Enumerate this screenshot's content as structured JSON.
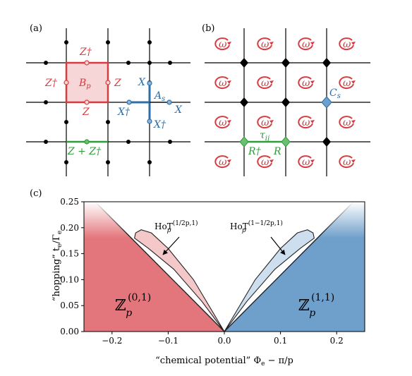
{
  "panel_a": {
    "label": "(a)",
    "plaquette_op": "B",
    "plaquette_sub": "p",
    "star_op": "A",
    "star_sub": "s",
    "z_dag": "Z†",
    "z": "Z",
    "x": "X",
    "x_dag": "X†",
    "z_plus_zdag": "Z + Z†",
    "colors": {
      "plaquette": "#d93a3f",
      "star": "#2c6fa8",
      "edge": "#2f9b3c"
    }
  },
  "panel_b": {
    "label": "(b)",
    "omega": "ω",
    "cs_op": "C",
    "cs_sub": "s",
    "tau": "τ",
    "tau_sub": "ij",
    "r_dag": "R†",
    "r": "R",
    "colors": {
      "omega": "#d93a3f",
      "cs": "#2c6fa8",
      "edge": "#2f9b3c"
    }
  },
  "panel_c": {
    "label": "(c)",
    "chart_data": {
      "type": "area",
      "xlabel": "“chemical potential” Φ",
      "xlabel_sub": "e",
      "xlabel_tail": " − π/p",
      "ylabel": "“hopping” t",
      "ylabel_sub": "e",
      "ylabel_tail": "/Γ",
      "ylabel_tail_sub": "e",
      "xlim": [
        -0.25,
        0.25
      ],
      "ylim": [
        0.0,
        0.25
      ],
      "x_ticks": [
        -0.2,
        -0.1,
        0.0,
        0.1,
        0.2
      ],
      "x_tick_labels": [
        "−0.2",
        "−0.1",
        "0.0",
        "0.1",
        "0.2"
      ],
      "y_ticks": [
        0.0,
        0.05,
        0.1,
        0.15,
        0.2,
        0.25
      ],
      "y_tick_labels": [
        "0.00",
        "0.05",
        "0.10",
        "0.15",
        "0.20",
        "0.25"
      ],
      "regions": [
        {
          "name": "ℤ_p^(0,1)",
          "label_main": "ℤ",
          "label_sub": "p",
          "label_sup": "(0,1)",
          "color": "#e3767c"
        },
        {
          "name": "ℤ_p^(1,1)",
          "label_main": "ℤ",
          "label_sub": "p",
          "label_sup": "(1,1)",
          "color": "#6f9fcb"
        }
      ],
      "boundary_lines": [
        {
          "from": [
            0.0,
            0.0
          ],
          "to": [
            -0.23,
            0.25
          ]
        },
        {
          "from": [
            0.0,
            0.0
          ],
          "to": [
            0.23,
            0.25
          ]
        }
      ],
      "lobes": [
        {
          "label": "HoT_p^(1/2p,1)",
          "label_main": "HoT",
          "label_sub": "p",
          "label_sup": "(1/2p,1)",
          "color": "#f3c1c3",
          "points": [
            [
              0.0,
              0.0
            ],
            [
              -0.055,
              0.1
            ],
            [
              -0.1,
              0.16
            ],
            [
              -0.13,
              0.19
            ],
            [
              -0.148,
              0.196
            ],
            [
              -0.158,
              0.19
            ],
            [
              -0.16,
              0.18
            ],
            [
              -0.135,
              0.16
            ],
            [
              -0.09,
              0.12
            ],
            [
              -0.04,
              0.058
            ],
            [
              0.0,
              0.0
            ]
          ]
        },
        {
          "label": "HoT_p^(1−1/2p,1)",
          "label_main": "HoT",
          "label_sub": "p",
          "label_sup": "(1−1/2p,1)",
          "color": "#c8dbec",
          "points": [
            [
              0.0,
              0.0
            ],
            [
              0.055,
              0.1
            ],
            [
              0.1,
              0.16
            ],
            [
              0.13,
              0.19
            ],
            [
              0.148,
              0.196
            ],
            [
              0.158,
              0.19
            ],
            [
              0.16,
              0.18
            ],
            [
              0.135,
              0.16
            ],
            [
              0.09,
              0.12
            ],
            [
              0.04,
              0.058
            ],
            [
              0.0,
              0.0
            ]
          ]
        }
      ],
      "grid": false
    }
  }
}
